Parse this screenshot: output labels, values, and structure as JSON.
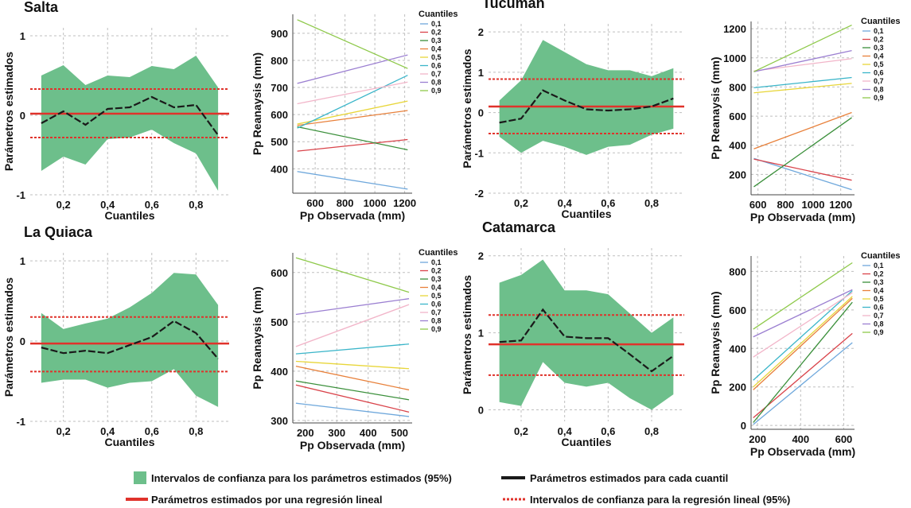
{
  "colors": {
    "band": "#6dbf8b",
    "quantile_line": "#1a1a1a",
    "ols_line": "#e0322b",
    "ols_ci": "#e0322b",
    "grid": "#bfbfbf"
  },
  "legend": {
    "band": "Intervalos de confianza para los parámetros estimados (95%)",
    "quantile_line": "Parámetros estimados para cada cuantil",
    "ols_line": "Parámetros estimados por una regresión lineal",
    "ols_ci": "Intervalos de confianza para la regresión lineal (95%)"
  },
  "chart_data": [
    {
      "type": "area",
      "title": "Salta",
      "xlabel": "Cuantiles",
      "ylabel": "Parámetros estimados",
      "xlim": [
        0.05,
        0.95
      ],
      "ylim": [
        -1,
        1.1
      ],
      "xticks": [
        0.2,
        0.4,
        0.6,
        0.8
      ],
      "xtick_labels": [
        "0,2",
        "0,4",
        "0,6",
        "0,8"
      ],
      "yticks": [
        -1,
        0,
        1
      ],
      "ytick_labels": [
        "-1",
        "0",
        "1"
      ],
      "x": [
        0.1,
        0.2,
        0.3,
        0.4,
        0.5,
        0.6,
        0.7,
        0.8,
        0.9
      ],
      "estimate": [
        -0.1,
        0.05,
        -0.12,
        0.08,
        0.1,
        0.23,
        0.1,
        0.13,
        -0.25
      ],
      "upper": [
        0.5,
        0.63,
        0.38,
        0.5,
        0.48,
        0.62,
        0.58,
        0.75,
        0.35
      ],
      "lower": [
        -0.7,
        -0.52,
        -0.62,
        -0.3,
        -0.28,
        -0.18,
        -0.35,
        -0.48,
        -0.95
      ],
      "ols_estimate": 0.02,
      "ols_ci": [
        -0.28,
        0.33
      ]
    },
    {
      "type": "line",
      "xlabel": "Pp Observada (mm)",
      "ylabel": "Pp Reanaysis (mm)",
      "legend_title": "Cuantiles",
      "xlim": [
        450,
        1250
      ],
      "ylim": [
        310,
        970
      ],
      "xticks": [
        600,
        800,
        1000,
        1200
      ],
      "yticks": [
        400,
        500,
        600,
        700,
        800,
        900
      ],
      "x": [
        480,
        1220
      ],
      "series": [
        {
          "name": "0,1",
          "color": "#6fa8dc",
          "values": [
            390,
            325
          ]
        },
        {
          "name": "0,2",
          "color": "#d9434a",
          "values": [
            465,
            508
          ]
        },
        {
          "name": "0,3",
          "color": "#3a8f3a",
          "values": [
            555,
            470
          ]
        },
        {
          "name": "0,4",
          "color": "#e8803a",
          "values": [
            560,
            615
          ]
        },
        {
          "name": "0,5",
          "color": "#e8d63a",
          "values": [
            565,
            650
          ]
        },
        {
          "name": "0,6",
          "color": "#3ab5c9",
          "values": [
            550,
            745
          ]
        },
        {
          "name": "0,7",
          "color": "#f2b5c9",
          "values": [
            640,
            720
          ]
        },
        {
          "name": "0,8",
          "color": "#9b7fd1",
          "values": [
            715,
            820
          ]
        },
        {
          "name": "0,9",
          "color": "#8ec94a",
          "values": [
            950,
            770
          ]
        }
      ]
    },
    {
      "type": "area",
      "title": "Tucumán",
      "xlabel": "Cuantiles",
      "ylabel": "Parámetros estimados",
      "xlim": [
        0.05,
        0.95
      ],
      "ylim": [
        -2,
        2.2
      ],
      "xticks": [
        0.2,
        0.4,
        0.6,
        0.8
      ],
      "xtick_labels": [
        "0,2",
        "0,4",
        "0,6",
        "0,8"
      ],
      "yticks": [
        -2,
        -1,
        0,
        1,
        2
      ],
      "ytick_labels": [
        "-2",
        "-1",
        "0",
        "1",
        "2"
      ],
      "x": [
        0.1,
        0.2,
        0.3,
        0.4,
        0.5,
        0.6,
        0.7,
        0.8,
        0.9
      ],
      "estimate": [
        -0.25,
        -0.15,
        0.55,
        0.3,
        0.08,
        0.05,
        0.08,
        0.15,
        0.35
      ],
      "upper": [
        0.3,
        0.8,
        1.8,
        1.5,
        1.2,
        1.05,
        1.05,
        0.9,
        1.1
      ],
      "lower": [
        -0.6,
        -1.0,
        -0.7,
        -0.85,
        -1.05,
        -0.85,
        -0.8,
        -0.55,
        -0.4
      ],
      "ols_estimate": 0.15,
      "ols_ci": [
        -0.52,
        0.83
      ]
    },
    {
      "type": "line",
      "xlabel": "Pp Observada (mm)",
      "ylabel": "Pp Reanaysis (mm)",
      "legend_title": "Cuantiles",
      "xlim": [
        550,
        1300
      ],
      "ylim": [
        60,
        1250
      ],
      "xticks": [
        600,
        800,
        1000,
        1200
      ],
      "yticks": [
        200,
        400,
        600,
        800,
        1000,
        1200
      ],
      "x": [
        570,
        1280
      ],
      "series": [
        {
          "name": "0,1",
          "color": "#6fa8dc",
          "values": [
            310,
            95
          ]
        },
        {
          "name": "0,2",
          "color": "#d9434a",
          "values": [
            305,
            160
          ]
        },
        {
          "name": "0,3",
          "color": "#3a8f3a",
          "values": [
            115,
            590
          ]
        },
        {
          "name": "0,4",
          "color": "#e8803a",
          "values": [
            375,
            625
          ]
        },
        {
          "name": "0,5",
          "color": "#e8d63a",
          "values": [
            760,
            825
          ]
        },
        {
          "name": "0,6",
          "color": "#3ab5c9",
          "values": [
            795,
            865
          ]
        },
        {
          "name": "0,7",
          "color": "#f2b5c9",
          "values": [
            910,
            995
          ]
        },
        {
          "name": "0,8",
          "color": "#9b7fd1",
          "values": [
            905,
            1050
          ]
        },
        {
          "name": "0,9",
          "color": "#8ec94a",
          "values": [
            905,
            1225
          ]
        }
      ]
    },
    {
      "type": "area",
      "title": "La Quiaca",
      "xlabel": "Cuantiles",
      "ylabel": "Parámetros estimados",
      "xlim": [
        0.05,
        0.95
      ],
      "ylim": [
        -1,
        1.1
      ],
      "xticks": [
        0.2,
        0.4,
        0.6,
        0.8
      ],
      "xtick_labels": [
        "0,2",
        "0,4",
        "0,6",
        "0,8"
      ],
      "yticks": [
        -1,
        0,
        1
      ],
      "ytick_labels": [
        "-1",
        "0",
        "1"
      ],
      "x": [
        0.1,
        0.2,
        0.3,
        0.4,
        0.5,
        0.6,
        0.7,
        0.8,
        0.9
      ],
      "estimate": [
        -0.08,
        -0.15,
        -0.12,
        -0.15,
        -0.05,
        0.05,
        0.25,
        0.1,
        -0.22
      ],
      "upper": [
        0.35,
        0.15,
        0.22,
        0.28,
        0.42,
        0.6,
        0.85,
        0.83,
        0.45
      ],
      "lower": [
        -0.52,
        -0.48,
        -0.48,
        -0.58,
        -0.52,
        -0.5,
        -0.35,
        -0.68,
        -0.82
      ],
      "ols_estimate": -0.03,
      "ols_ci": [
        -0.38,
        0.3
      ]
    },
    {
      "type": "line",
      "xlabel": "Pp Observada (mm)",
      "ylabel": "Pp Reanaysis (mm)",
      "legend_title": "Cuantiles",
      "xlim": [
        160,
        540
      ],
      "ylim": [
        295,
        640
      ],
      "xticks": [
        200,
        300,
        400,
        500
      ],
      "yticks": [
        300,
        400,
        500,
        600
      ],
      "x": [
        170,
        530
      ],
      "series": [
        {
          "name": "0,1",
          "color": "#6fa8dc",
          "values": [
            335,
            308
          ]
        },
        {
          "name": "0,2",
          "color": "#d9434a",
          "values": [
            372,
            317
          ]
        },
        {
          "name": "0,3",
          "color": "#3a8f3a",
          "values": [
            380,
            342
          ]
        },
        {
          "name": "0,4",
          "color": "#e8803a",
          "values": [
            410,
            362
          ]
        },
        {
          "name": "0,5",
          "color": "#e8d63a",
          "values": [
            420,
            405
          ]
        },
        {
          "name": "0,6",
          "color": "#3ab5c9",
          "values": [
            435,
            455
          ]
        },
        {
          "name": "0,7",
          "color": "#f2b5c9",
          "values": [
            450,
            535
          ]
        },
        {
          "name": "0,8",
          "color": "#9b7fd1",
          "values": [
            515,
            547
          ]
        },
        {
          "name": "0,9",
          "color": "#8ec94a",
          "values": [
            630,
            560
          ]
        }
      ]
    },
    {
      "type": "area",
      "title": "Catamarca",
      "xlabel": "Cuantiles",
      "ylabel": "Parámetros estimados",
      "xlim": [
        0.05,
        0.95
      ],
      "ylim": [
        -0.15,
        2.1
      ],
      "xticks": [
        0.2,
        0.4,
        0.6,
        0.8
      ],
      "xtick_labels": [
        "0,2",
        "0,4",
        "0,6",
        "0,8"
      ],
      "yticks": [
        0,
        1,
        2
      ],
      "ytick_labels": [
        "0",
        "1",
        "2"
      ],
      "x": [
        0.1,
        0.2,
        0.3,
        0.4,
        0.5,
        0.6,
        0.7,
        0.8,
        0.9
      ],
      "estimate": [
        0.88,
        0.9,
        1.3,
        0.95,
        0.93,
        0.93,
        0.72,
        0.5,
        0.7
      ],
      "upper": [
        1.65,
        1.75,
        1.95,
        1.55,
        1.55,
        1.5,
        1.25,
        1.0,
        1.2
      ],
      "lower": [
        0.1,
        0.05,
        0.62,
        0.35,
        0.3,
        0.35,
        0.15,
        0.0,
        0.2
      ],
      "ols_estimate": 0.85,
      "ols_ci": [
        0.45,
        1.23
      ]
    },
    {
      "type": "line",
      "xlabel": "Pp Observada (mm)",
      "ylabel": "Pp Reanaysis (mm)",
      "legend_title": "Cuantiles",
      "xlim": [
        170,
        650
      ],
      "ylim": [
        -20,
        880
      ],
      "xticks": [
        200,
        400,
        600
      ],
      "yticks": [
        0,
        200,
        400,
        600,
        800
      ],
      "x": [
        180,
        640
      ],
      "series": [
        {
          "name": "0,1",
          "color": "#6fa8dc",
          "values": [
            5,
            430
          ]
        },
        {
          "name": "0,2",
          "color": "#d9434a",
          "values": [
            40,
            478
          ]
        },
        {
          "name": "0,3",
          "color": "#3a8f3a",
          "values": [
            15,
            640
          ]
        },
        {
          "name": "0,4",
          "color": "#e8803a",
          "values": [
            185,
            660
          ]
        },
        {
          "name": "0,5",
          "color": "#e8d63a",
          "values": [
            200,
            670
          ]
        },
        {
          "name": "0,6",
          "color": "#3ab5c9",
          "values": [
            235,
            700
          ]
        },
        {
          "name": "0,7",
          "color": "#f2b5c9",
          "values": [
            355,
            690
          ]
        },
        {
          "name": "0,8",
          "color": "#9b7fd1",
          "values": [
            460,
            705
          ]
        },
        {
          "name": "0,9",
          "color": "#8ec94a",
          "values": [
            500,
            845
          ]
        }
      ]
    }
  ]
}
